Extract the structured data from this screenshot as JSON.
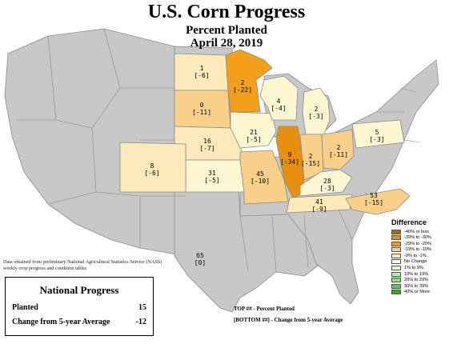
{
  "title": "U.S. Corn Progress",
  "subtitle": "Percent Planted",
  "date": "April 28, 2019",
  "colors": {
    "background_states": "#c8c8c8",
    "state_border": "#8a8a8a",
    "water": "#ffffff"
  },
  "states": [
    {
      "id": "ND",
      "top": "1",
      "bottom": "[-6]",
      "color": "#fde9b9"
    },
    {
      "id": "MN",
      "top": "2",
      "bottom": "[-22]",
      "color": "#f29f1a"
    },
    {
      "id": "WI",
      "top": "4",
      "bottom": "[-4]",
      "color": "#fff6d2"
    },
    {
      "id": "MI",
      "top": "2",
      "bottom": "[-3]",
      "color": "#fff6d2"
    },
    {
      "id": "SD",
      "top": "0",
      "bottom": "[-11]",
      "color": "#f9d08a"
    },
    {
      "id": "IA",
      "top": "21",
      "bottom": "[-5]",
      "color": "#fff6d2"
    },
    {
      "id": "NE",
      "top": "16",
      "bottom": "[-7]",
      "color": "#fde9b9"
    },
    {
      "id": "IL",
      "top": "9",
      "bottom": "[-34]",
      "color": "#e8900e"
    },
    {
      "id": "IN",
      "top": "2",
      "bottom": "[-15]",
      "color": "#f9d08a"
    },
    {
      "id": "OH",
      "top": "2",
      "bottom": "[-11]",
      "color": "#f9d08a"
    },
    {
      "id": "PA",
      "top": "5",
      "bottom": "[-3]",
      "color": "#fff6d2"
    },
    {
      "id": "CO",
      "top": "8",
      "bottom": "[-6]",
      "color": "#fde9b9"
    },
    {
      "id": "KS",
      "top": "31",
      "bottom": "[-5]",
      "color": "#fff6d2"
    },
    {
      "id": "MO",
      "top": "45",
      "bottom": "[-10]",
      "color": "#f9d08a"
    },
    {
      "id": "KY",
      "top": "28",
      "bottom": "[-3]",
      "color": "#fff6d2"
    },
    {
      "id": "TN",
      "top": "41",
      "bottom": "[-9]",
      "color": "#fde9b9"
    },
    {
      "id": "NC",
      "top": "53",
      "bottom": "[-15]",
      "color": "#f9d08a"
    },
    {
      "id": "TX",
      "top": "65",
      "bottom": "[0]",
      "color": "#ffffff"
    }
  ],
  "source_note": "Data obtained from preliminary National Agricultural Statistics Service (NASS) weekly crop progress and condition tables",
  "national_progress": {
    "title": "National Progress",
    "planted_label": "Planted",
    "planted_value": "15",
    "change_label": "Change from 5-year Average",
    "change_value": "-12"
  },
  "legend_notes": {
    "top": "TOP ## - Percent Planted",
    "bottom": "[BOTTOM ##] - Change from 5-year Average"
  },
  "difference_legend": {
    "title": "Difference",
    "items": [
      {
        "label": "-40% or less",
        "color": "#a66b08"
      },
      {
        "label": "-39% to -30%",
        "color": "#e8900e"
      },
      {
        "label": "-29% to -20%",
        "color": "#f29f1a"
      },
      {
        "label": "-19% to -10%",
        "color": "#f9d08a"
      },
      {
        "label": "-9% to -1%",
        "color": "#fde9b9"
      },
      {
        "label": "No Change",
        "color": "#ffffff"
      },
      {
        "label": "1% to 9%",
        "color": "#dff4d8"
      },
      {
        "label": "10% to 19%",
        "color": "#b9ebb0"
      },
      {
        "label": "20% to 29%",
        "color": "#8fdc82"
      },
      {
        "label": "30% to 39%",
        "color": "#5ecb50"
      },
      {
        "label": "40% or More",
        "color": "#37a62b"
      }
    ]
  }
}
